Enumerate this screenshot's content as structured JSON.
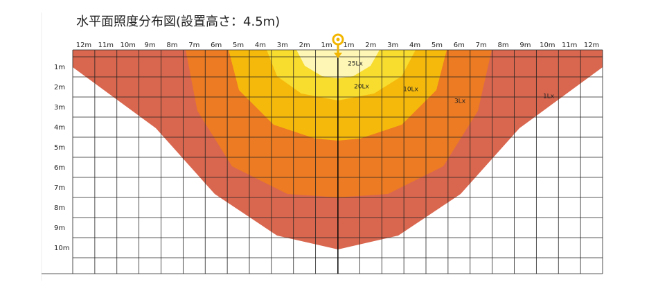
{
  "header": {
    "title": "水平面照度分布図(設置高さ：4.5m)"
  },
  "x_labels": [
    "12m",
    "11m",
    "10m",
    "9m",
    "8m",
    "7m",
    "6m",
    "5m",
    "4m",
    "3m",
    "2m",
    "1m",
    "1m",
    "2m",
    "3m",
    "4m",
    "5m",
    "6m",
    "7m",
    "8m",
    "9m",
    "10m",
    "11m",
    "12m"
  ],
  "y_labels": [
    "1m",
    "2m",
    "3m",
    "4m",
    "5m",
    "6m",
    "7m",
    "8m",
    "9m",
    "10m"
  ],
  "zones": [
    {
      "label": "25Lx"
    },
    {
      "label": "20Lx"
    },
    {
      "label": "10Lx"
    },
    {
      "label": "3Lx"
    },
    {
      "label": "1Lx"
    }
  ]
}
